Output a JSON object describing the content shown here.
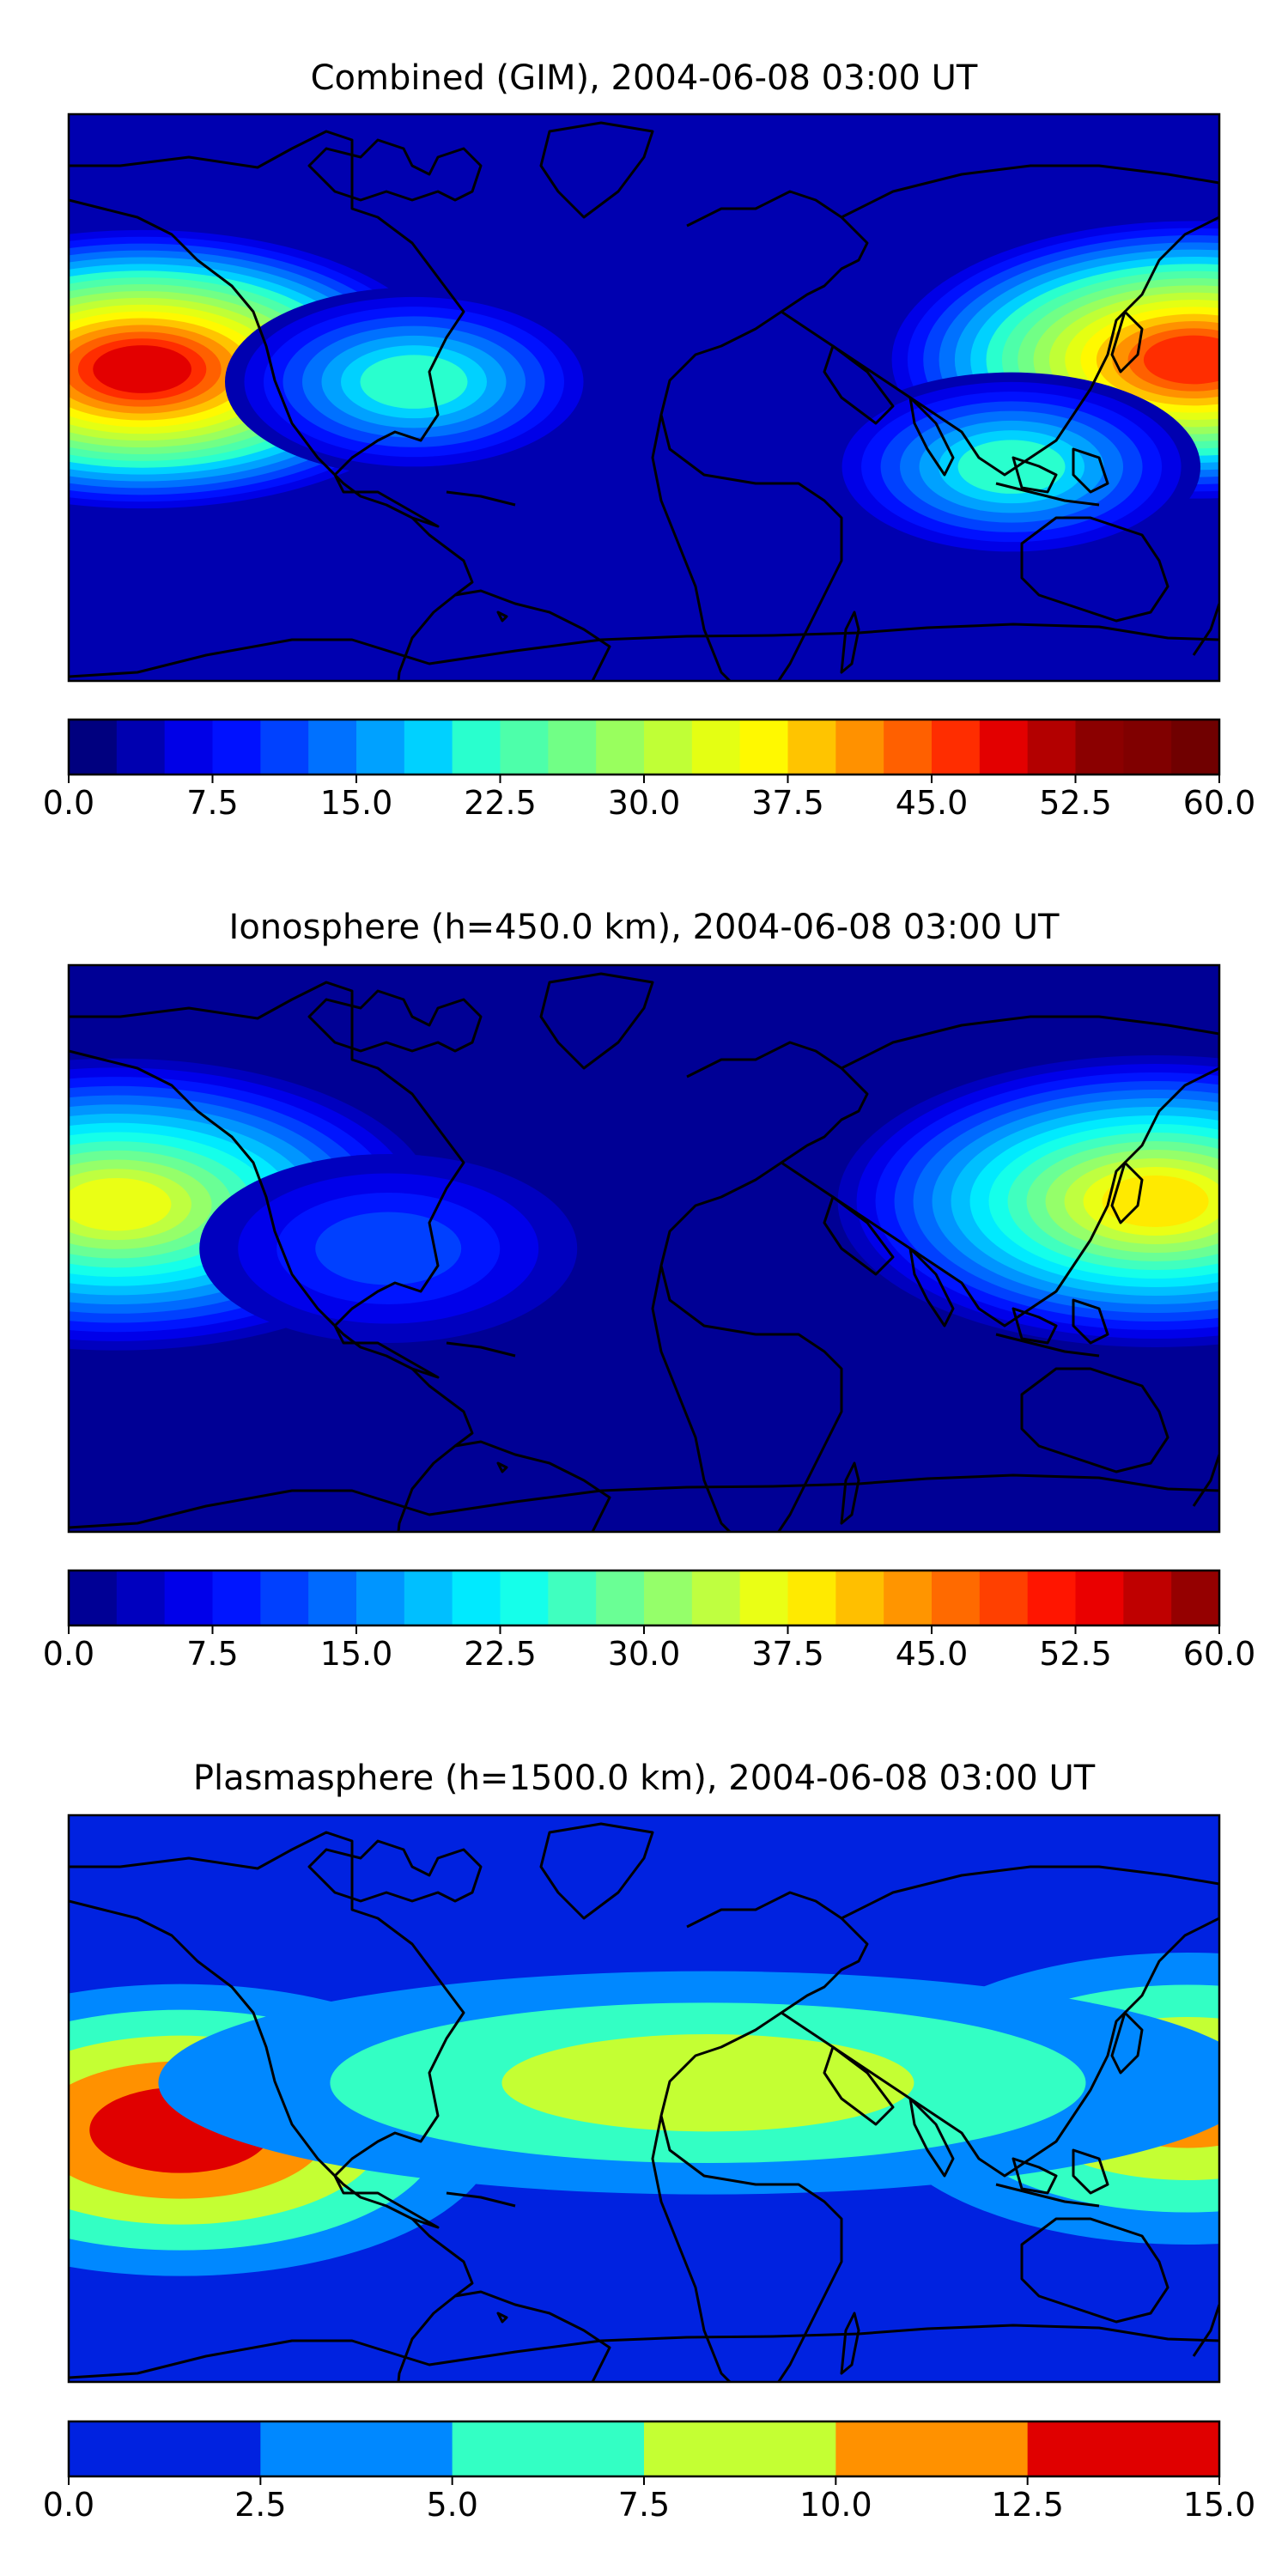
{
  "chart_data": [
    {
      "type": "heatmap",
      "title": "Combined (GIM), 2004-06-08 03:00 UT",
      "colormap": "jet",
      "colorbar": {
        "vmin": 0.0,
        "vmax": 60.0,
        "levels": 24,
        "tick_labels": [
          "0.0",
          "7.5",
          "15.0",
          "22.5",
          "30.0",
          "37.5",
          "45.0",
          "52.5",
          "60.0"
        ],
        "colors": [
          "#00007f",
          "#0000b0",
          "#0000e7",
          "#0011ff",
          "#0041ff",
          "#0071ff",
          "#00a1ff",
          "#00d1ff",
          "#29ffce",
          "#4dffaa",
          "#71ff86",
          "#99ff5e",
          "#c0ff36",
          "#e4ff13",
          "#fff900",
          "#ffc400",
          "#ff9100",
          "#ff6000",
          "#ff2d00",
          "#e30000",
          "#b30000",
          "#8b0000",
          "#800000",
          "#700000"
        ]
      },
      "features": [
        {
          "label": "peak",
          "lon": -157,
          "lat": 9,
          "value": 50
        },
        {
          "label": "peak",
          "lon": 172,
          "lat": 12,
          "value": 48
        },
        {
          "label": "secondary",
          "lon": -72,
          "lat": 5,
          "value": 22
        },
        {
          "label": "secondary",
          "lon": 115,
          "lat": -22,
          "value": 22
        },
        {
          "label": "trough",
          "lon": 40,
          "lat": 5,
          "value": 9
        },
        {
          "label": "trough",
          "lon": 30,
          "lat": -52,
          "value": 4
        }
      ],
      "value_range": [
        2,
        52
      ]
    },
    {
      "type": "heatmap",
      "title": "Ionosphere  (h=450.0 km), 2004-06-08 03:00 UT",
      "colormap": "jet",
      "colorbar": {
        "vmin": 0.0,
        "vmax": 60.0,
        "levels": 24,
        "tick_labels": [
          "0.0",
          "7.5",
          "15.0",
          "22.5",
          "30.0",
          "37.5",
          "45.0",
          "52.5",
          "60.0"
        ]
      },
      "features": [
        {
          "label": "peak",
          "lon": -165,
          "lat": 14,
          "value": 38
        },
        {
          "label": "peak",
          "lon": 160,
          "lat": 15,
          "value": 40
        },
        {
          "label": "secondary",
          "lon": -80,
          "lat": 0,
          "value": 12
        },
        {
          "label": "trough",
          "lon": 20,
          "lat": -5,
          "value": 4
        },
        {
          "label": "trough",
          "lon": 0,
          "lat": -55,
          "value": 2
        }
      ],
      "value_range": [
        1,
        41
      ]
    },
    {
      "type": "heatmap",
      "title": "Plasmasphere (h=1500.0 km), 2004-06-08 03:00 UT",
      "colormap": "jet",
      "colorbar": {
        "vmin": 0.0,
        "vmax": 15.0,
        "levels": 6,
        "tick_labels": [
          "0.0",
          "2.5",
          "5.0",
          "7.5",
          "10.0",
          "12.5",
          "15.0"
        ],
        "colors": [
          "#0022e0",
          "#0088ff",
          "#33ffc4",
          "#c4ff33",
          "#ff9100",
          "#e00000"
        ]
      },
      "features": [
        {
          "label": "peak",
          "lon": -145,
          "lat": -10,
          "value": 13
        },
        {
          "label": "peak",
          "lon": 170,
          "lat": 0,
          "value": 11
        },
        {
          "label": "band",
          "lon": 20,
          "lat": 5,
          "value": 8
        },
        {
          "label": "low",
          "lon": 0,
          "lat": 60,
          "value": 1
        },
        {
          "label": "low",
          "lon": 0,
          "lat": -70,
          "value": 1
        }
      ],
      "value_range": [
        0,
        13.5
      ]
    }
  ]
}
